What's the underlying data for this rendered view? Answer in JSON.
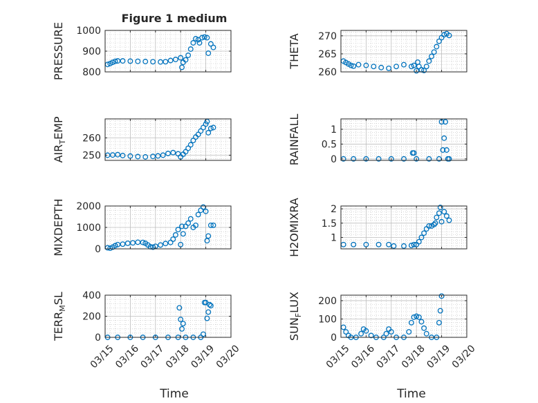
{
  "figure": {
    "title": "Figure 1 medium",
    "xlabel": "Time"
  },
  "colors": {
    "marker": "#0072BD",
    "axis": "#262626",
    "grid": "#bdbdbd",
    "background": "#ffffff"
  },
  "chart_data": [
    {
      "type": "scatter",
      "ylabel": "PRESSURE",
      "xlim": [
        "03/15",
        "03/20"
      ],
      "ylim": [
        800,
        1000
      ],
      "yticks": [
        "800",
        "900",
        "1000"
      ],
      "xticks": [
        "03/15",
        "03/16",
        "03/17",
        "03/18",
        "03/19",
        "03/20"
      ],
      "grid": true,
      "points": [
        [
          0.1,
          836
        ],
        [
          0.2,
          840
        ],
        [
          0.3,
          846
        ],
        [
          0.4,
          851
        ],
        [
          0.5,
          853
        ],
        [
          0.7,
          853
        ],
        [
          1.0,
          852
        ],
        [
          1.3,
          851
        ],
        [
          1.6,
          850
        ],
        [
          1.9,
          849
        ],
        [
          2.2,
          848
        ],
        [
          2.4,
          849
        ],
        [
          2.6,
          855
        ],
        [
          2.8,
          860
        ],
        [
          3.0,
          868
        ],
        [
          3.05,
          822
        ],
        [
          3.1,
          846
        ],
        [
          3.2,
          858
        ],
        [
          3.3,
          880
        ],
        [
          3.4,
          910
        ],
        [
          3.5,
          940
        ],
        [
          3.6,
          960
        ],
        [
          3.7,
          955
        ],
        [
          3.75,
          940
        ],
        [
          3.85,
          965
        ],
        [
          3.95,
          968
        ],
        [
          4.05,
          965
        ],
        [
          4.1,
          890
        ],
        [
          4.2,
          935
        ],
        [
          4.3,
          918
        ]
      ]
    },
    {
      "type": "scatter",
      "ylabel": "THETA",
      "xlim": [
        "03/15",
        "03/20"
      ],
      "ylim": [
        260,
        271.5
      ],
      "yticks": [
        "260",
        "265",
        "270"
      ],
      "xticks": [
        "03/15",
        "03/16",
        "03/17",
        "03/18",
        "03/19",
        "03/20"
      ],
      "grid": true,
      "points": [
        [
          0.1,
          263
        ],
        [
          0.2,
          262.6
        ],
        [
          0.3,
          262.2
        ],
        [
          0.4,
          261.8
        ],
        [
          0.5,
          261.6
        ],
        [
          0.7,
          262
        ],
        [
          1.0,
          261.8
        ],
        [
          1.3,
          261.5
        ],
        [
          1.6,
          261.2
        ],
        [
          1.9,
          261
        ],
        [
          2.2,
          261.5
        ],
        [
          2.5,
          262
        ],
        [
          2.8,
          261.5
        ],
        [
          2.9,
          261.8
        ],
        [
          3.0,
          260.3
        ],
        [
          3.05,
          262.7
        ],
        [
          3.1,
          261.5
        ],
        [
          3.2,
          260.6
        ],
        [
          3.3,
          260.4
        ],
        [
          3.4,
          261.5
        ],
        [
          3.5,
          263
        ],
        [
          3.6,
          264.3
        ],
        [
          3.7,
          265.5
        ],
        [
          3.8,
          267
        ],
        [
          3.9,
          268.5
        ],
        [
          4.0,
          269.5
        ],
        [
          4.1,
          270.3
        ],
        [
          4.2,
          270.6
        ],
        [
          4.3,
          270.1
        ]
      ]
    },
    {
      "type": "scatter",
      "ylabel": "AIR",
      "ylabel_sub": "T",
      "ylabel_tail": "EMP",
      "xlim": [
        "03/15",
        "03/20"
      ],
      "ylim": [
        247,
        271
      ],
      "yticks": [
        "250",
        "260"
      ],
      "xticks": [
        "03/15",
        "03/16",
        "03/17",
        "03/18",
        "03/19",
        "03/20"
      ],
      "grid": true,
      "points": [
        [
          0.1,
          250
        ],
        [
          0.3,
          250.1
        ],
        [
          0.5,
          250.3
        ],
        [
          0.7,
          249.8
        ],
        [
          1.0,
          249.5
        ],
        [
          1.3,
          249.2
        ],
        [
          1.6,
          249
        ],
        [
          1.9,
          249.3
        ],
        [
          2.1,
          249.6
        ],
        [
          2.3,
          250
        ],
        [
          2.5,
          251
        ],
        [
          2.7,
          251.5
        ],
        [
          2.9,
          250.8
        ],
        [
          3.0,
          249
        ],
        [
          3.1,
          250.5
        ],
        [
          3.2,
          252
        ],
        [
          3.3,
          254
        ],
        [
          3.4,
          256
        ],
        [
          3.5,
          258.5
        ],
        [
          3.6,
          260.5
        ],
        [
          3.7,
          262
        ],
        [
          3.8,
          264
        ],
        [
          3.9,
          266
        ],
        [
          4.0,
          268
        ],
        [
          4.05,
          269.5
        ],
        [
          4.1,
          263
        ],
        [
          4.2,
          265.5
        ],
        [
          4.3,
          266
        ]
      ]
    },
    {
      "type": "scatter",
      "ylabel": "RAINFALL",
      "xlim": [
        "03/15",
        "03/20"
      ],
      "ylim": [
        -0.05,
        1.35
      ],
      "yticks": [
        "0",
        "0.5",
        "1"
      ],
      "xticks": [
        "03/15",
        "03/16",
        "03/17",
        "03/18",
        "03/19",
        "03/20"
      ],
      "grid": true,
      "points": [
        [
          0.1,
          0
        ],
        [
          0.5,
          0
        ],
        [
          1.0,
          0
        ],
        [
          1.5,
          0
        ],
        [
          2.0,
          0
        ],
        [
          2.5,
          0
        ],
        [
          2.85,
          0.2
        ],
        [
          2.9,
          0.2
        ],
        [
          3.0,
          0
        ],
        [
          3.5,
          0
        ],
        [
          3.9,
          0
        ],
        [
          4.0,
          1.25
        ],
        [
          4.05,
          0.3
        ],
        [
          4.1,
          0.7
        ],
        [
          4.15,
          1.25
        ],
        [
          4.2,
          0.3
        ],
        [
          4.25,
          0
        ],
        [
          4.3,
          0
        ]
      ]
    },
    {
      "type": "scatter",
      "ylabel": "MIXDEPTH",
      "xlim": [
        "03/15",
        "03/20"
      ],
      "ylim": [
        0,
        2000
      ],
      "yticks": [
        "0",
        "1000",
        "2000"
      ],
      "xticks": [
        "03/15",
        "03/16",
        "03/17",
        "03/18",
        "03/19",
        "03/20"
      ],
      "grid": true,
      "points": [
        [
          0.1,
          50
        ],
        [
          0.2,
          30
        ],
        [
          0.3,
          80
        ],
        [
          0.4,
          150
        ],
        [
          0.5,
          200
        ],
        [
          0.7,
          220
        ],
        [
          0.9,
          260
        ],
        [
          1.1,
          280
        ],
        [
          1.3,
          310
        ],
        [
          1.5,
          300
        ],
        [
          1.6,
          260
        ],
        [
          1.7,
          180
        ],
        [
          1.8,
          100
        ],
        [
          1.9,
          80
        ],
        [
          2.0,
          120
        ],
        [
          2.2,
          180
        ],
        [
          2.4,
          250
        ],
        [
          2.6,
          300
        ],
        [
          2.7,
          450
        ],
        [
          2.8,
          650
        ],
        [
          2.9,
          900
        ],
        [
          3.0,
          200
        ],
        [
          3.05,
          1050
        ],
        [
          3.1,
          700
        ],
        [
          3.2,
          1050
        ],
        [
          3.3,
          1200
        ],
        [
          3.4,
          1400
        ],
        [
          3.5,
          1000
        ],
        [
          3.6,
          1100
        ],
        [
          3.7,
          1600
        ],
        [
          3.8,
          1800
        ],
        [
          3.9,
          1950
        ],
        [
          4.0,
          1750
        ],
        [
          4.05,
          380
        ],
        [
          4.1,
          600
        ],
        [
          4.2,
          1100
        ],
        [
          4.3,
          1100
        ]
      ]
    },
    {
      "type": "scatter",
      "ylabel": "H2OMIXRA",
      "xlim": [
        "03/15",
        "03/20"
      ],
      "ylim": [
        0.6,
        2.1
      ],
      "yticks": [
        "1",
        "1.5",
        "2"
      ],
      "xticks": [
        "03/15",
        "03/16",
        "03/17",
        "03/18",
        "03/19",
        "03/20"
      ],
      "grid": true,
      "points": [
        [
          0.1,
          0.75
        ],
        [
          0.5,
          0.75
        ],
        [
          1.0,
          0.75
        ],
        [
          1.5,
          0.75
        ],
        [
          1.9,
          0.75
        ],
        [
          2.1,
          0.7
        ],
        [
          2.5,
          0.7
        ],
        [
          2.8,
          0.72
        ],
        [
          2.9,
          0.75
        ],
        [
          3.0,
          0.75
        ],
        [
          3.1,
          0.85
        ],
        [
          3.2,
          1.0
        ],
        [
          3.3,
          1.15
        ],
        [
          3.4,
          1.3
        ],
        [
          3.5,
          1.4
        ],
        [
          3.6,
          1.4
        ],
        [
          3.7,
          1.45
        ],
        [
          3.75,
          1.5
        ],
        [
          3.8,
          1.7
        ],
        [
          3.9,
          1.85
        ],
        [
          3.95,
          2.05
        ],
        [
          4.0,
          1.55
        ],
        [
          4.1,
          1.9
        ],
        [
          4.2,
          1.75
        ],
        [
          4.3,
          1.6
        ]
      ]
    },
    {
      "type": "scatter",
      "ylabel": "TERR",
      "ylabel_sub": "M",
      "ylabel_tail": "SL",
      "xlim": [
        "03/15",
        "03/20"
      ],
      "ylim": [
        0,
        400
      ],
      "yticks": [
        "0",
        "200",
        "400"
      ],
      "xticks": [
        "03/15",
        "03/16",
        "03/17",
        "03/18",
        "03/19",
        "03/20"
      ],
      "grid": true,
      "points": [
        [
          0.1,
          0
        ],
        [
          0.5,
          0
        ],
        [
          1.0,
          0
        ],
        [
          1.5,
          0
        ],
        [
          2.0,
          0
        ],
        [
          2.5,
          0
        ],
        [
          2.9,
          0
        ],
        [
          2.95,
          280
        ],
        [
          3.0,
          170
        ],
        [
          3.05,
          80
        ],
        [
          3.1,
          130
        ],
        [
          3.2,
          0
        ],
        [
          3.5,
          0
        ],
        [
          3.8,
          0
        ],
        [
          3.9,
          30
        ],
        [
          3.95,
          330
        ],
        [
          4.0,
          330
        ],
        [
          4.05,
          180
        ],
        [
          4.1,
          240
        ],
        [
          4.15,
          310
        ],
        [
          4.2,
          300
        ]
      ]
    },
    {
      "type": "scatter",
      "ylabel": "SUN",
      "ylabel_sub": "F",
      "ylabel_tail": "LUX",
      "xlim": [
        "03/15",
        "03/20"
      ],
      "ylim": [
        0,
        230
      ],
      "yticks": [
        "0",
        "100",
        "200"
      ],
      "xticks": [
        "03/15",
        "03/16",
        "03/17",
        "03/18",
        "03/19",
        "03/20"
      ],
      "grid": true,
      "points": [
        [
          0.1,
          55
        ],
        [
          0.2,
          30
        ],
        [
          0.3,
          10
        ],
        [
          0.4,
          0
        ],
        [
          0.6,
          0
        ],
        [
          0.8,
          20
        ],
        [
          0.9,
          45
        ],
        [
          1.0,
          35
        ],
        [
          1.2,
          10
        ],
        [
          1.4,
          0
        ],
        [
          1.7,
          0
        ],
        [
          1.8,
          20
        ],
        [
          1.9,
          45
        ],
        [
          2.0,
          30
        ],
        [
          2.2,
          0
        ],
        [
          2.5,
          0
        ],
        [
          2.7,
          30
        ],
        [
          2.8,
          80
        ],
        [
          2.9,
          110
        ],
        [
          3.0,
          115
        ],
        [
          3.1,
          110
        ],
        [
          3.2,
          85
        ],
        [
          3.3,
          50
        ],
        [
          3.4,
          20
        ],
        [
          3.6,
          0
        ],
        [
          3.8,
          0
        ],
        [
          3.9,
          80
        ],
        [
          3.95,
          145
        ],
        [
          4.0,
          225
        ]
      ]
    }
  ]
}
